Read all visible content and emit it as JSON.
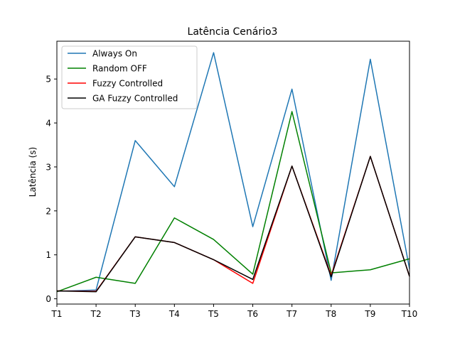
{
  "chart_data": {
    "type": "line",
    "title": "Latência Cenário3",
    "xlabel": "",
    "ylabel": "Latência (s)",
    "categories": [
      "T1",
      "T2",
      "T3",
      "T4",
      "T5",
      "T6",
      "T7",
      "T8",
      "T9",
      "T10"
    ],
    "yticks": [
      0,
      1,
      2,
      3,
      4,
      5
    ],
    "ylim": [
      -0.12,
      5.86
    ],
    "grid": false,
    "legend_position": "top-left",
    "series": [
      {
        "name": "Always On",
        "color": "#1f77b4",
        "values": [
          0.17,
          0.2,
          3.6,
          2.55,
          5.6,
          1.64,
          4.77,
          0.42,
          5.45,
          0.68
        ]
      },
      {
        "name": "Random OFF",
        "color": "#008000",
        "values": [
          0.16,
          0.49,
          0.35,
          1.84,
          1.35,
          0.56,
          4.26,
          0.59,
          0.66,
          0.91
        ]
      },
      {
        "name": "Fuzzy Controlled",
        "color": "#ff0000",
        "values": [
          0.18,
          0.17,
          1.41,
          1.28,
          0.89,
          0.35,
          3.02,
          0.53,
          3.24,
          0.51
        ]
      },
      {
        "name": "GA Fuzzy Controlled",
        "color": "#000000",
        "values": [
          0.18,
          0.16,
          1.41,
          1.28,
          0.89,
          0.44,
          3.02,
          0.5,
          3.24,
          0.51
        ]
      }
    ]
  }
}
